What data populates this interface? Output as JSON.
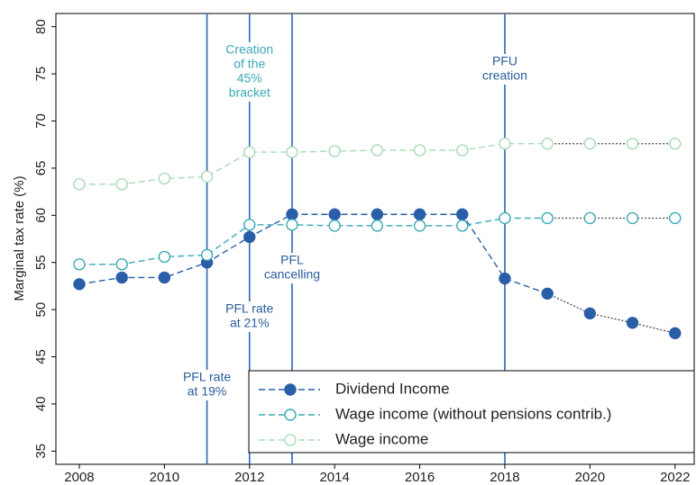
{
  "chart_data": {
    "type": "line",
    "y_label": "Marginal tax rate (%)",
    "x": [
      2008,
      2009,
      2010,
      2011,
      2012,
      2013,
      2014,
      2015,
      2016,
      2017,
      2018,
      2019,
      2020,
      2021,
      2022
    ],
    "series": [
      {
        "name": "Dividend Income",
        "color": "#2a5fa8",
        "marker": "filled",
        "values": [
          52.7,
          53.4,
          53.4,
          55.0,
          57.7,
          60.1,
          60.1,
          60.1,
          60.1,
          60.1,
          53.3,
          51.7,
          49.6,
          48.6,
          47.5
        ]
      },
      {
        "name": "Wage income (without pensions contrib.)",
        "color": "#3aa9b7",
        "marker": "hollow",
        "values": [
          54.8,
          54.8,
          55.6,
          55.8,
          59.0,
          59.0,
          58.9,
          58.9,
          58.9,
          58.9,
          59.7,
          59.7,
          59.7,
          59.7,
          59.7
        ]
      },
      {
        "name": "Wage income",
        "color": "#a8dbb8",
        "marker": "hollow",
        "values": [
          63.3,
          63.3,
          63.9,
          64.1,
          66.7,
          66.7,
          66.8,
          66.9,
          66.9,
          66.9,
          67.6,
          67.6,
          67.6,
          67.6,
          67.6
        ]
      }
    ],
    "dotted_from_x": 2019,
    "dotted_color": "#555555",
    "xlim": [
      2007.45,
      2022.45
    ],
    "ylim": [
      33.6,
      81.4
    ],
    "xticks": [
      2008,
      2010,
      2012,
      2014,
      2016,
      2018,
      2020,
      2022
    ],
    "yticks": [
      35,
      40,
      45,
      50,
      55,
      60,
      65,
      70,
      75,
      80
    ],
    "vlines": [
      2011,
      2012,
      2013,
      2018
    ],
    "vline_color": "#2a6ab0",
    "annotations": [
      {
        "x": 2011,
        "lines": [
          "PFL rate",
          "at 19%"
        ],
        "color": "#2a5c9e"
      },
      {
        "x": 2012,
        "lines": [
          "PFL rate",
          "at 21%"
        ],
        "color": "#2a5c9e"
      },
      {
        "x": 2012,
        "lines": [
          "Creation",
          "of the",
          "45%",
          "bracket"
        ],
        "color": "#3aa9b7"
      },
      {
        "x": 2013,
        "lines": [
          "PFL",
          "cancelling"
        ],
        "color": "#2a5c9e"
      },
      {
        "x": 2018,
        "lines": [
          "PFU",
          "creation"
        ],
        "color": "#2a5c9e"
      }
    ],
    "legend": "bottom-right"
  }
}
